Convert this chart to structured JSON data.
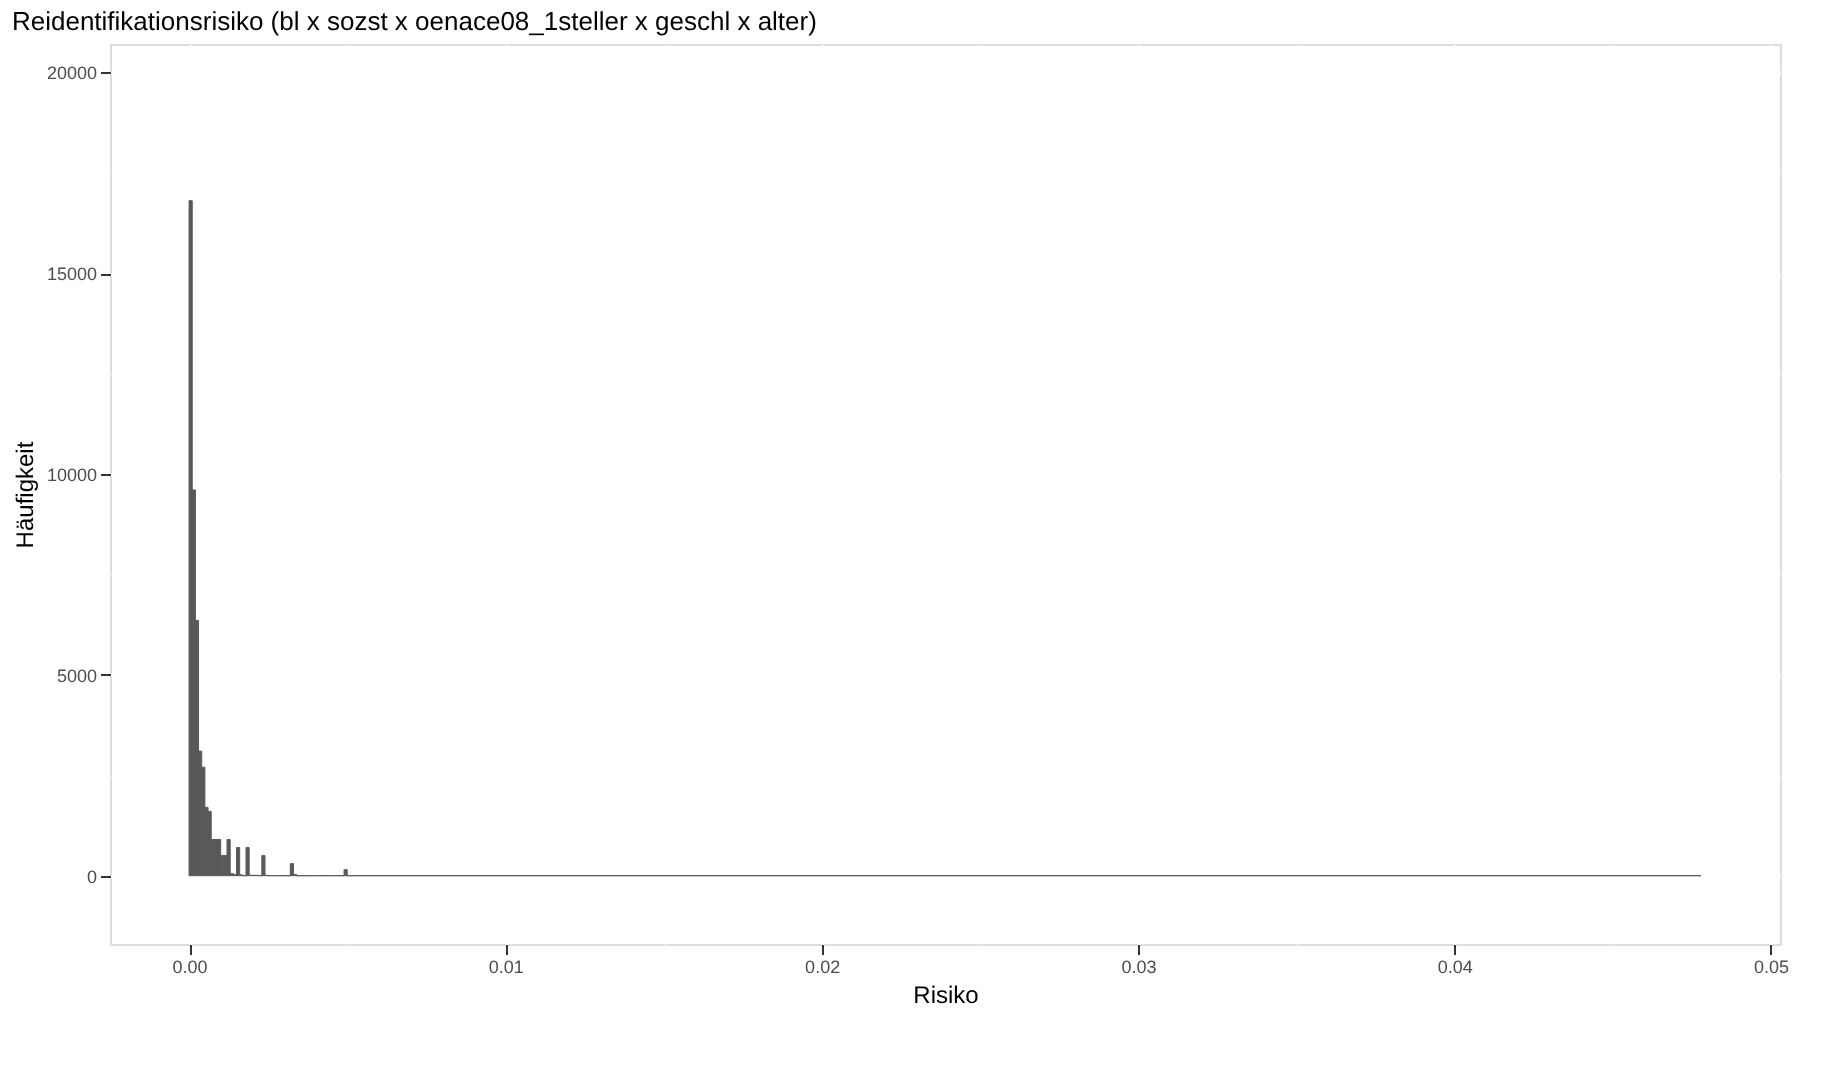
{
  "chart_data": {
    "type": "histogram",
    "title": "Reidentifikationsrisiko (bl x sozst x oenace08_1steller x geschl x alter)",
    "xlabel": "Risiko",
    "ylabel": "Häufigkeit",
    "bins": [
      0,
      0.0001,
      0.0002,
      0.0003,
      0.0004,
      0.0005,
      0.0006,
      0.0007,
      0.0008,
      0.0009,
      0.001,
      0.0011,
      0.0012,
      0.0013,
      0.0014,
      0.0015,
      0.0016,
      0.0017,
      0.0018,
      0.0019,
      0.002,
      0.0021,
      0.0022,
      0.0023,
      0.0024,
      0.0025,
      0.0026,
      0.0027,
      0.0028,
      0.0029,
      0.003,
      0.0031,
      0.0032,
      0.0033,
      0.0034,
      0.0035,
      0.0036,
      0.0037,
      0.0038,
      0.0039,
      0.004,
      0.0041,
      0.0042,
      0.0043,
      0.0044,
      0.0045,
      0.0046,
      0.0047,
      0.0048,
      0.0049,
      0.005,
      0.0478
    ],
    "values": [
      16800,
      9600,
      6350,
      3100,
      2700,
      1700,
      1600,
      900,
      900,
      900,
      500,
      500,
      900,
      50,
      30,
      700,
      20,
      0,
      700,
      10,
      10,
      10,
      0,
      500,
      10,
      0,
      0,
      0,
      0,
      0,
      0,
      0,
      300,
      30,
      0,
      0,
      0,
      0,
      0,
      0,
      0,
      0,
      0,
      0,
      0,
      0,
      0,
      0,
      0,
      150,
      0
    ],
    "color": "#595959",
    "xlim": [
      -0.0025,
      0.0503
    ],
    "ylim": [
      -1700,
      20700
    ],
    "xticks": [
      {
        "value": 0,
        "label": "0.00"
      },
      0.01,
      0.02,
      0.03,
      0.04,
      0.05
    ],
    "yticks": [
      0,
      5000,
      10000,
      15000,
      20000
    ],
    "grid": true
  }
}
